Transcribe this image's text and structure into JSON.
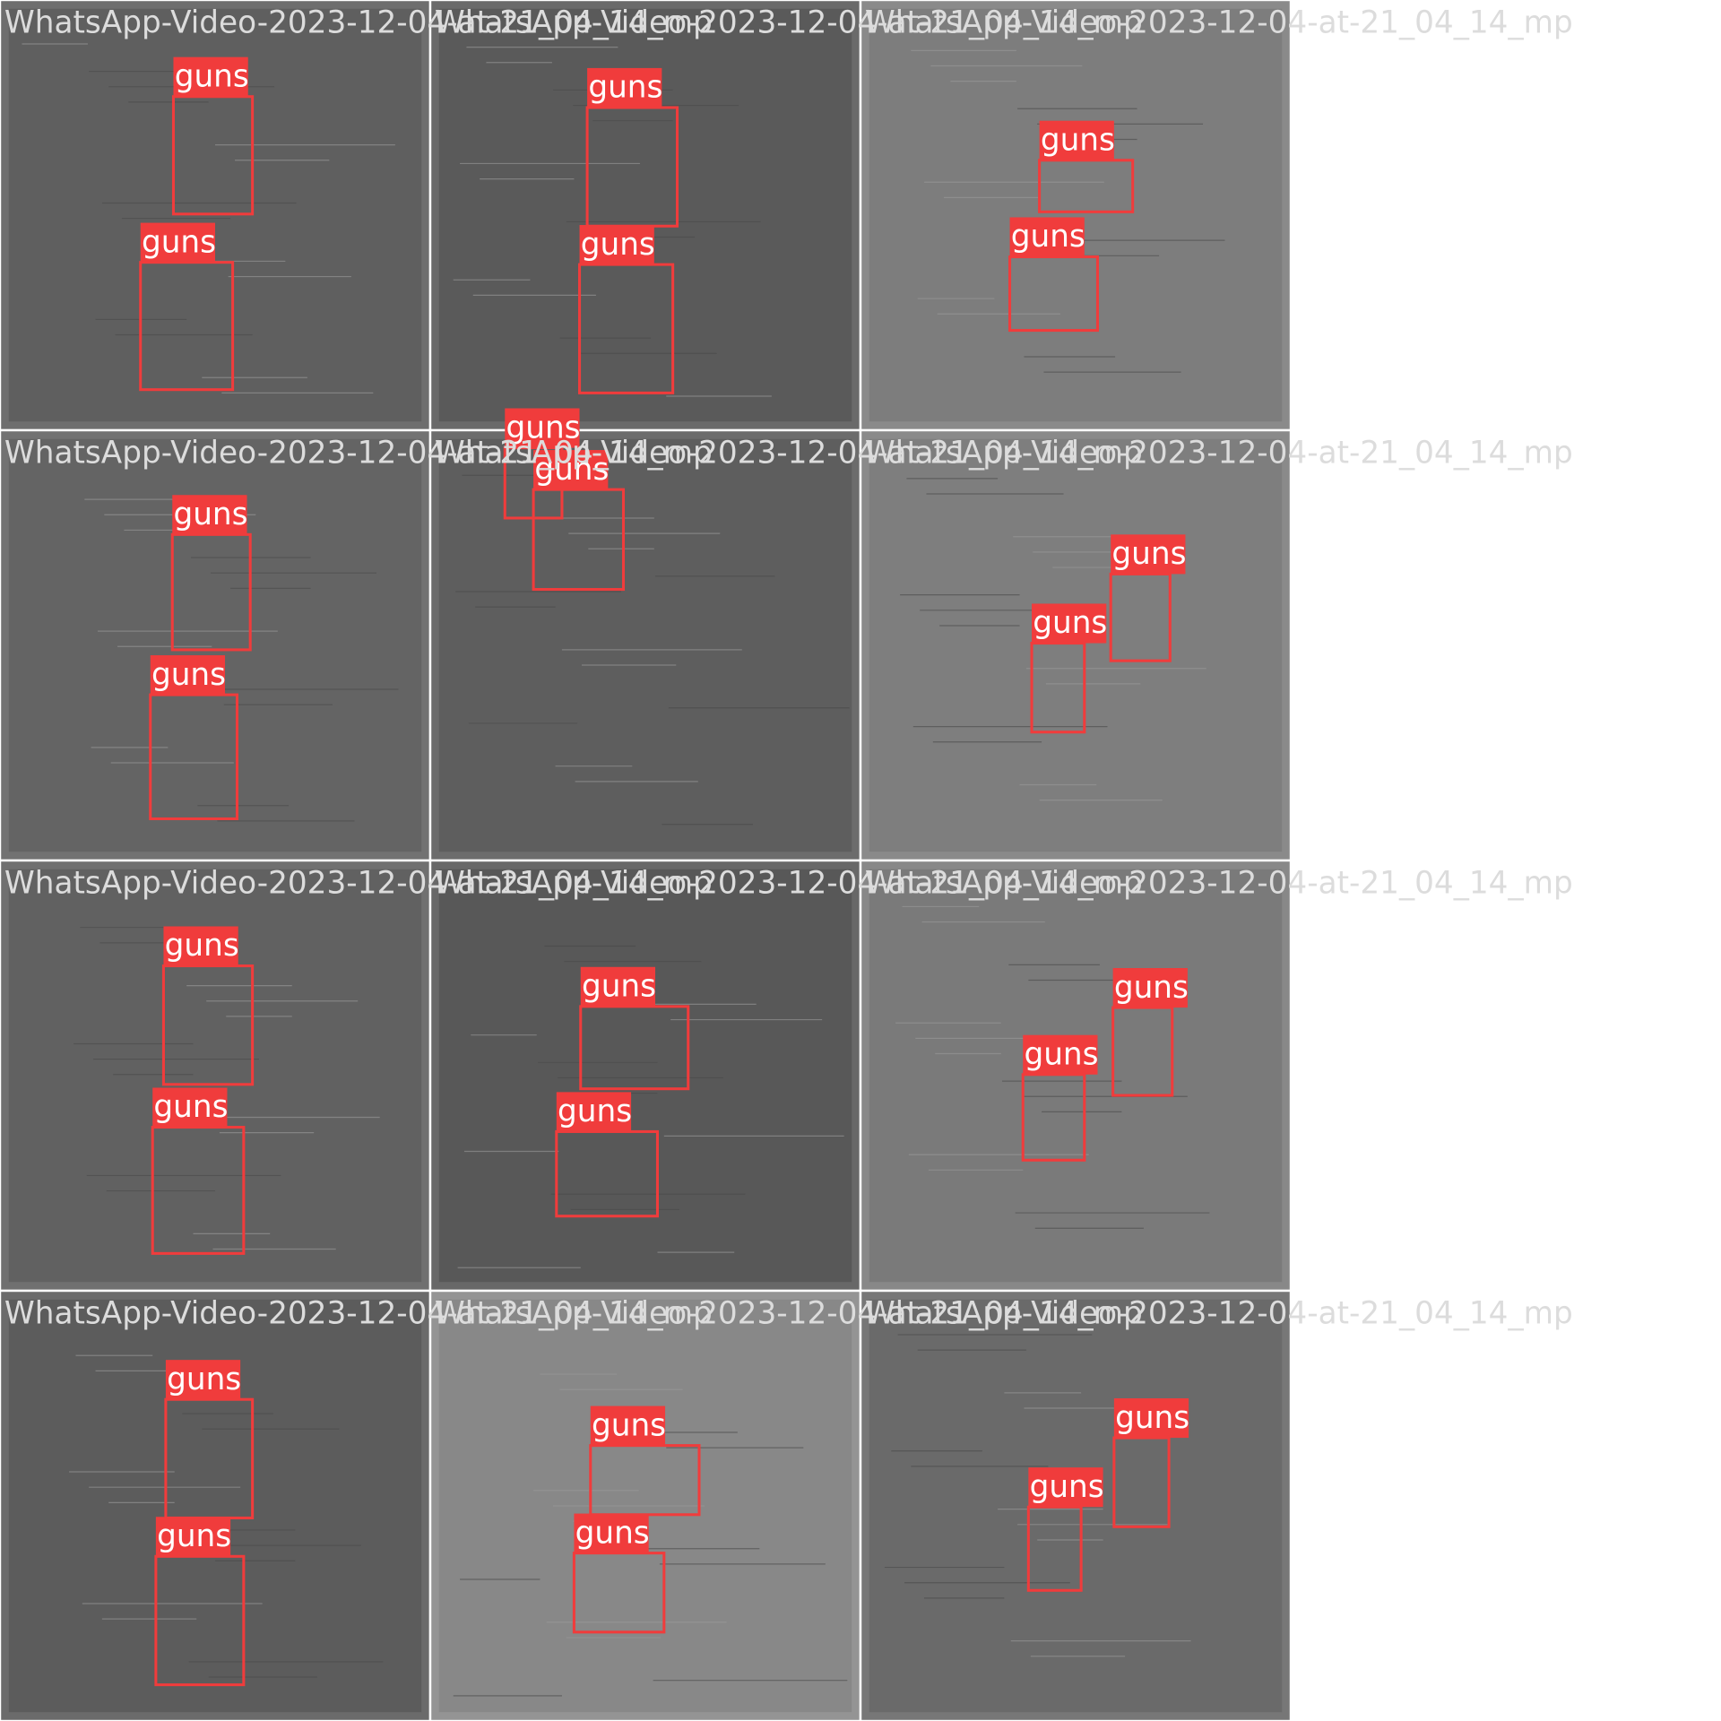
{
  "tiles": [
    {
      "title": "WhatsApp-Video-2023-12-04-at-21_04_14_mp",
      "boxes": [
        {
          "label": "guns"
        },
        {
          "label": "guns"
        }
      ]
    },
    {
      "title": "WhatsApp-Video-2023-12-04-at-21_04_14_mp",
      "boxes": [
        {
          "label": "guns"
        },
        {
          "label": "guns"
        }
      ]
    },
    {
      "title": "WhatsApp-Video-2023-12-04-at-21_04_14_mp",
      "boxes": [
        {
          "label": "guns"
        },
        {
          "label": "guns"
        }
      ]
    },
    {
      "title": "WhatsApp-Video-2023-12-04-at-21_04_14_mp",
      "boxes": [
        {
          "label": "guns"
        },
        {
          "label": "guns"
        }
      ]
    },
    {
      "title": "WhatsApp-Video-2023-12-04-at-21_04_14_mp",
      "boxes": [
        {
          "label": "guns"
        },
        {
          "label": "guns"
        }
      ]
    },
    {
      "title": "WhatsApp-Video-2023-12-04-at-21_04_14_mp",
      "boxes": [
        {
          "label": "guns"
        },
        {
          "label": "guns"
        }
      ]
    },
    {
      "title": "WhatsApp-Video-2023-12-04-at-21_04_14_mp",
      "boxes": [
        {
          "label": "guns"
        },
        {
          "label": "guns"
        }
      ]
    },
    {
      "title": "WhatsApp-Video-2023-12-04-at-21_04_14_mp",
      "boxes": [
        {
          "label": "guns"
        },
        {
          "label": "guns"
        }
      ]
    },
    {
      "title": "WhatsApp-Video-2023-12-04-at-21_04_14_mp",
      "boxes": [
        {
          "label": "guns"
        },
        {
          "label": "guns"
        }
      ]
    },
    {
      "title": "WhatsApp-Video-2023-12-04-at-21_04_14_mp",
      "boxes": [
        {
          "label": "guns"
        },
        {
          "label": "guns"
        }
      ]
    },
    {
      "title": "WhatsApp-Video-2023-12-04-at-21_04_14_mp",
      "boxes": [
        {
          "label": "guns"
        },
        {
          "label": "guns"
        }
      ]
    },
    {
      "title": "WhatsApp-Video-2023-12-04-at-21_04_14_mp",
      "boxes": [
        {
          "label": "guns"
        },
        {
          "label": "guns"
        }
      ]
    }
  ]
}
